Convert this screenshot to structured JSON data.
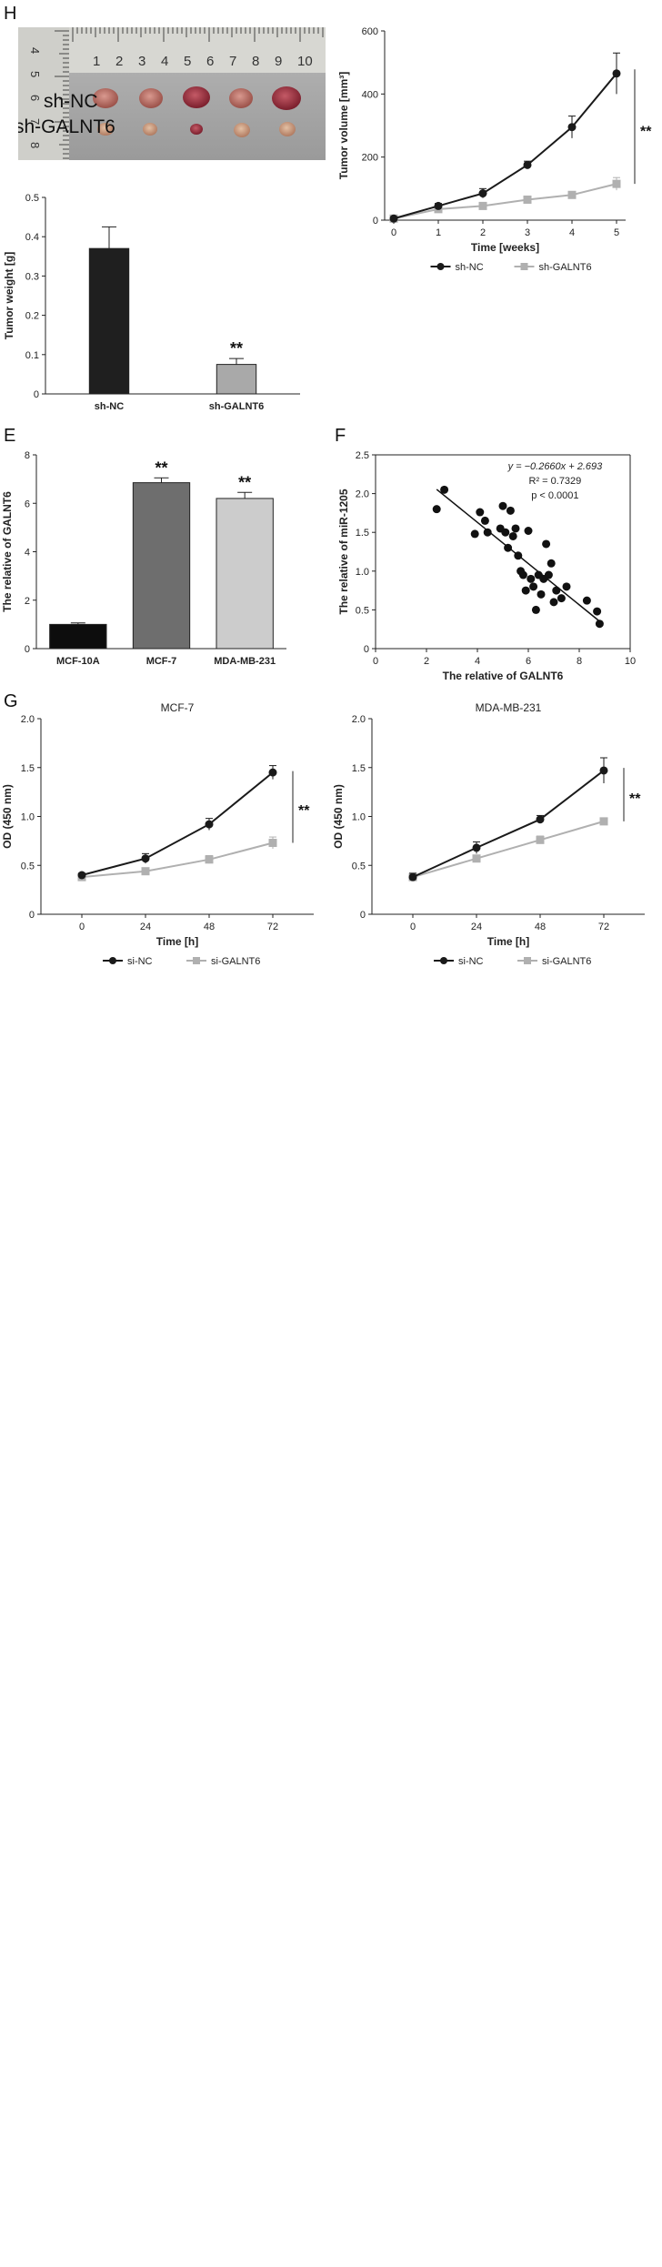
{
  "panels": {
    "H": "H",
    "E": "E",
    "F": "F",
    "G": "G"
  },
  "photo": {
    "ruler_top_numbers": [
      "1",
      "2",
      "3",
      "4",
      "5",
      "6",
      "7",
      "8",
      "9",
      "10"
    ],
    "ruler_side_numbers": [
      "4",
      "5",
      "6",
      "7",
      "8"
    ],
    "label_sh_nc": "sh-NC",
    "label_sh_galnt6": "sh-GALNT6"
  },
  "chart_data": [
    {
      "id": "tumor_volume",
      "type": "line",
      "title": "",
      "xlabel": "Time [weeks]",
      "ylabel": "Tumor volume [mm³]",
      "x": [
        0,
        1,
        2,
        3,
        4,
        5
      ],
      "xlim": [
        0,
        5
      ],
      "ylim": [
        0,
        600
      ],
      "xticks": [
        "0",
        "1",
        "2",
        "3",
        "4",
        "5"
      ],
      "yticks": [
        "0",
        "200",
        "400",
        "600"
      ],
      "grid": false,
      "legend": "bottom",
      "series": [
        {
          "name": "sh-NC",
          "color": "#1a1a1a",
          "marker": "circle",
          "values": [
            5,
            45,
            85,
            175,
            295,
            465
          ],
          "errors": [
            3,
            8,
            15,
            12,
            35,
            65
          ]
        },
        {
          "name": "sh-GALNT6",
          "color": "#b0b0b0",
          "marker": "square",
          "values": [
            5,
            35,
            45,
            65,
            80,
            115
          ],
          "errors": [
            3,
            5,
            6,
            8,
            8,
            20
          ]
        }
      ],
      "significance": "**"
    },
    {
      "id": "tumor_weight",
      "type": "bar",
      "title": "",
      "xlabel": "",
      "ylabel": "Tumor weight [g]",
      "categories": [
        "sh-NC",
        "sh-GALNT6"
      ],
      "values": [
        0.37,
        0.075
      ],
      "errors": [
        0.055,
        0.015
      ],
      "colors": [
        "#1f1f1f",
        "#a9a9a9"
      ],
      "ylim": [
        0,
        0.5
      ],
      "yticks": [
        "0",
        "0.1",
        "0.2",
        "0.3",
        "0.4",
        "0.5"
      ],
      "annotations": [
        "",
        "**"
      ]
    },
    {
      "id": "galnt6_expression",
      "type": "bar",
      "title": "",
      "xlabel": "",
      "ylabel": "The relative of GALNT6",
      "categories": [
        "MCF-10A",
        "MCF-7",
        "MDA-MB-231"
      ],
      "values": [
        1.0,
        6.85,
        6.2
      ],
      "errors": [
        0.06,
        0.2,
        0.25
      ],
      "colors": [
        "#0d0d0d",
        "#6e6e6e",
        "#cccccc"
      ],
      "ylim": [
        0,
        8
      ],
      "yticks": [
        "0",
        "2",
        "4",
        "6",
        "8"
      ],
      "annotations": [
        "",
        "**",
        "**"
      ]
    },
    {
      "id": "correlation",
      "type": "scatter",
      "title": "",
      "xlabel": "The relative of GALNT6",
      "ylabel": "The relative of miR-1205",
      "xlim": [
        0,
        10
      ],
      "ylim": [
        0,
        2.5
      ],
      "xticks": [
        "0",
        "2",
        "4",
        "6",
        "8",
        "10"
      ],
      "yticks": [
        "0",
        "0.5",
        "1.0",
        "1.5",
        "2.0",
        "2.5"
      ],
      "points": [
        [
          2.4,
          1.8
        ],
        [
          2.7,
          2.05
        ],
        [
          3.9,
          1.48
        ],
        [
          4.1,
          1.76
        ],
        [
          4.3,
          1.65
        ],
        [
          4.4,
          1.5
        ],
        [
          4.9,
          1.55
        ],
        [
          5.0,
          1.84
        ],
        [
          5.1,
          1.5
        ],
        [
          5.2,
          1.3
        ],
        [
          5.3,
          1.78
        ],
        [
          5.4,
          1.45
        ],
        [
          5.5,
          1.55
        ],
        [
          5.6,
          1.2
        ],
        [
          5.7,
          1.0
        ],
        [
          5.8,
          0.95
        ],
        [
          5.9,
          0.75
        ],
        [
          6.0,
          1.52
        ],
        [
          6.1,
          0.9
        ],
        [
          6.2,
          0.8
        ],
        [
          6.3,
          0.5
        ],
        [
          6.4,
          0.95
        ],
        [
          6.5,
          0.7
        ],
        [
          6.6,
          0.9
        ],
        [
          6.7,
          1.35
        ],
        [
          6.8,
          0.95
        ],
        [
          6.9,
          1.1
        ],
        [
          7.0,
          0.6
        ],
        [
          7.1,
          0.75
        ],
        [
          7.3,
          0.65
        ],
        [
          7.5,
          0.8
        ],
        [
          8.3,
          0.62
        ],
        [
          8.7,
          0.48
        ],
        [
          8.8,
          0.32
        ]
      ],
      "fit": {
        "slope": -0.266,
        "intercept": 2.693,
        "x_range": [
          2.4,
          8.8
        ]
      },
      "stats": {
        "equation": "y = −0.2660x + 2.693",
        "r2": "R² = 0.7329",
        "p": "p < 0.0001"
      }
    },
    {
      "id": "od_mcf7",
      "type": "line",
      "title": "MCF-7",
      "xlabel": "Time [h]",
      "ylabel": "OD (450 nm)",
      "x": [
        0,
        24,
        48,
        72
      ],
      "xlim": [
        0,
        72
      ],
      "ylim": [
        0,
        2.0
      ],
      "xticks": [
        "0",
        "24",
        "48",
        "72"
      ],
      "yticks": [
        "0",
        "0.5",
        "1.0",
        "1.5",
        "2.0"
      ],
      "grid": false,
      "legend": "bottom",
      "series": [
        {
          "name": "si-NC",
          "color": "#1a1a1a",
          "marker": "circle",
          "values": [
            0.4,
            0.57,
            0.92,
            1.45
          ],
          "errors": [
            0.02,
            0.05,
            0.06,
            0.07
          ]
        },
        {
          "name": "si-GALNT6",
          "color": "#b0b0b0",
          "marker": "square",
          "values": [
            0.38,
            0.44,
            0.56,
            0.73
          ],
          "errors": [
            0.02,
            0.03,
            0.04,
            0.06
          ]
        }
      ],
      "significance": "**"
    },
    {
      "id": "od_mda",
      "type": "line",
      "title": "MDA-MB-231",
      "xlabel": "Time [h]",
      "ylabel": "OD (450 nm)",
      "x": [
        0,
        24,
        48,
        72
      ],
      "xlim": [
        0,
        72
      ],
      "ylim": [
        0,
        2.0
      ],
      "xticks": [
        "0",
        "24",
        "48",
        "72"
      ],
      "yticks": [
        "0",
        "0.5",
        "1.0",
        "1.5",
        "2.0"
      ],
      "grid": false,
      "legend": "bottom",
      "series": [
        {
          "name": "si-NC",
          "color": "#1a1a1a",
          "marker": "circle",
          "values": [
            0.38,
            0.68,
            0.97,
            1.47
          ],
          "errors": [
            0.04,
            0.06,
            0.04,
            0.13
          ]
        },
        {
          "name": "si-GALNT6",
          "color": "#b0b0b0",
          "marker": "square",
          "values": [
            0.38,
            0.57,
            0.76,
            0.95
          ],
          "errors": [
            0.03,
            0.03,
            0.04,
            0.03
          ]
        }
      ],
      "significance": "**"
    }
  ]
}
